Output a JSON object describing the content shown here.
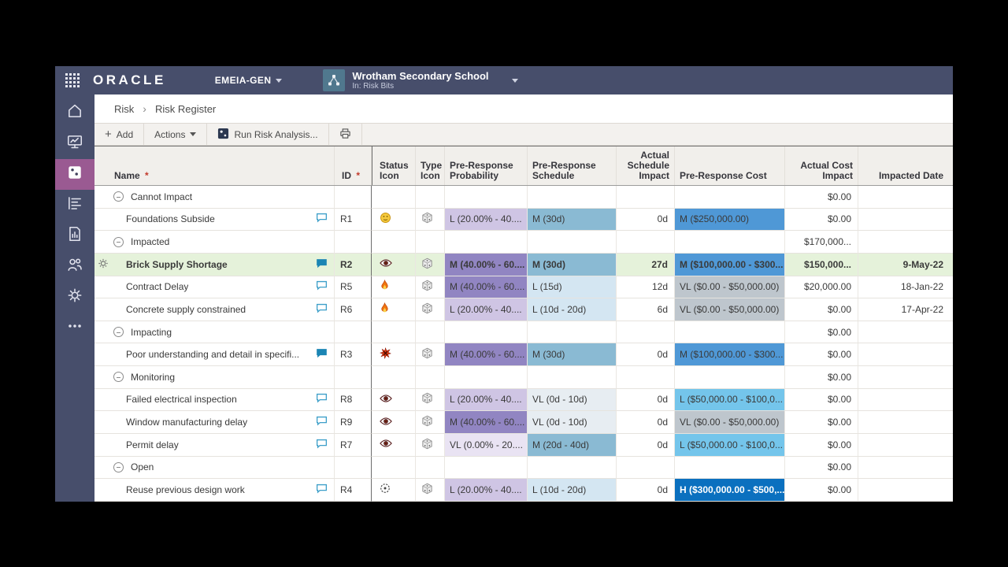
{
  "topbar": {
    "brand": "ORACLE",
    "workspace_label": "EMEIA-GEN",
    "project_name": "Wrotham Secondary School",
    "project_context": "In: Risk Bits",
    "icons": [
      "app-grid-icon",
      "project-network-icon",
      "chevron-down-icon"
    ]
  },
  "breadcrumb": {
    "section": "Risk",
    "page": "Risk Register"
  },
  "toolbar": {
    "add_label": "Add",
    "actions_label": "Actions",
    "run_label": "Run Risk Analysis...",
    "icons": [
      "plus-icon",
      "chevron-down-icon",
      "risk-analysis-die-icon",
      "print-icon"
    ]
  },
  "sidebar": {
    "selected_color": "#9a5a92",
    "bar_color": "#474e6b",
    "items": [
      {
        "icon": "home-icon",
        "selected": false
      },
      {
        "icon": "dashboard-monitor-icon",
        "selected": false
      },
      {
        "icon": "risk-die-icon",
        "selected": true
      },
      {
        "icon": "wbs-list-icon",
        "selected": false
      },
      {
        "icon": "report-document-icon",
        "selected": false
      },
      {
        "icon": "people-icon",
        "selected": false
      },
      {
        "icon": "gear-icon",
        "selected": false
      },
      {
        "icon": "more-ellipsis-icon",
        "selected": false
      }
    ]
  },
  "table": {
    "columns": [
      {
        "key": "name",
        "label": "Name",
        "required": true,
        "align": "left"
      },
      {
        "key": "id",
        "label": "ID",
        "required": true,
        "align": "right"
      },
      {
        "key": "status",
        "label": "Status Icon",
        "align": "left"
      },
      {
        "key": "type",
        "label": "Type Icon",
        "align": "left"
      },
      {
        "key": "prob",
        "label": "Pre-Response Probability",
        "align": "left"
      },
      {
        "key": "sched",
        "label": "Pre-Response Schedule",
        "align": "left"
      },
      {
        "key": "asi",
        "label": "Actual Schedule Impact",
        "align": "right"
      },
      {
        "key": "cost",
        "label": "Pre-Response Cost",
        "align": "left"
      },
      {
        "key": "aci",
        "label": "Actual Cost Impact",
        "align": "right"
      },
      {
        "key": "date",
        "label": "Impacted Date",
        "align": "right"
      }
    ],
    "colors": {
      "prob": {
        "VL": "#e9e3f3",
        "L": "#cfc5e4",
        "M": "#9185c2"
      },
      "sched": {
        "VL": "#e7edf2",
        "L": "#d4e6f2",
        "M": "#8abad3"
      },
      "cost": {
        "VL": "#bec6cd",
        "L": "#74c5eb",
        "M": "#4f98d6",
        "H": "#0b70bf"
      },
      "cost_h_text": "#ffffff",
      "selected_row": "#e5f2da"
    },
    "rows": [
      {
        "type": "group",
        "name": "Cannot Impact",
        "aci": "$0.00"
      },
      {
        "type": "item",
        "name": "Foundations Subside",
        "comment": "outline",
        "id": "R1",
        "status": "face-icon",
        "prob": {
          "level": "L",
          "label": "L (20.00% - 40...."
        },
        "sched": {
          "level": "M",
          "label": "M (30d)"
        },
        "asi": "0d",
        "cost": {
          "level": "M",
          "label": "M ($250,000.00)"
        },
        "aci": "$0.00",
        "date": ""
      },
      {
        "type": "group",
        "name": "Impacted",
        "aci": "$170,000..."
      },
      {
        "type": "item",
        "name": "Brick Supply Shortage",
        "selected": true,
        "gear": true,
        "comment": "filled",
        "id": "R2",
        "status": "eye-icon",
        "prob": {
          "level": "M",
          "label": "M (40.00% - 60...."
        },
        "sched": {
          "level": "M",
          "label": "M (30d)"
        },
        "asi": "27d",
        "cost": {
          "level": "M",
          "label": "M ($100,000.00 - $300..."
        },
        "aci": "$150,000...",
        "date": "9-May-22"
      },
      {
        "type": "item",
        "name": "Contract Delay",
        "comment": "outline",
        "id": "R5",
        "status": "flame-icon",
        "prob": {
          "level": "M",
          "label": "M (40.00% - 60...."
        },
        "sched": {
          "level": "L",
          "label": "L (15d)"
        },
        "asi": "12d",
        "cost": {
          "level": "VL",
          "label": "VL ($0.00 - $50,000.00)"
        },
        "aci": "$20,000.00",
        "date": "18-Jan-22"
      },
      {
        "type": "item",
        "name": "Concrete supply constrained",
        "comment": "outline",
        "id": "R6",
        "status": "flame-icon",
        "prob": {
          "level": "L",
          "label": "L (20.00% - 40...."
        },
        "sched": {
          "level": "L",
          "label": "L (10d - 20d)"
        },
        "asi": "6d",
        "cost": {
          "level": "VL",
          "label": "VL ($0.00 - $50,000.00)"
        },
        "aci": "$0.00",
        "date": "17-Apr-22"
      },
      {
        "type": "group",
        "name": "Impacting",
        "aci": "$0.00"
      },
      {
        "type": "item",
        "name": "Poor understanding and detail in specifi...",
        "comment": "filled",
        "id": "R3",
        "status": "impact-burst-icon",
        "prob": {
          "level": "M",
          "label": "M (40.00% - 60...."
        },
        "sched": {
          "level": "M",
          "label": "M (30d)"
        },
        "asi": "0d",
        "cost": {
          "level": "M",
          "label": "M ($100,000.00 - $300..."
        },
        "aci": "$0.00",
        "date": ""
      },
      {
        "type": "group",
        "name": "Monitoring",
        "aci": "$0.00"
      },
      {
        "type": "item",
        "name": "Failed electrical inspection",
        "comment": "outline",
        "id": "R8",
        "status": "eye-icon",
        "prob": {
          "level": "L",
          "label": "L (20.00% - 40...."
        },
        "sched": {
          "level": "VL",
          "label": "VL (0d - 10d)"
        },
        "asi": "0d",
        "cost": {
          "level": "L",
          "label": "L ($50,000.00 - $100,0..."
        },
        "aci": "$0.00",
        "date": ""
      },
      {
        "type": "item",
        "name": "Window manufacturing delay",
        "comment": "outline",
        "id": "R9",
        "status": "eye-icon",
        "prob": {
          "level": "M",
          "label": "M (40.00% - 60...."
        },
        "sched": {
          "level": "VL",
          "label": "VL (0d - 10d)"
        },
        "asi": "0d",
        "cost": {
          "level": "VL",
          "label": "VL ($0.00 - $50,000.00)"
        },
        "aci": "$0.00",
        "date": ""
      },
      {
        "type": "item",
        "name": "Permit delay",
        "comment": "outline",
        "id": "R7",
        "status": "eye-icon",
        "prob": {
          "level": "VL",
          "label": "VL (0.00% - 20...."
        },
        "sched": {
          "level": "M",
          "label": "M (20d - 40d)"
        },
        "asi": "0d",
        "cost": {
          "level": "L",
          "label": "L ($50,000.00 - $100,0..."
        },
        "aci": "$0.00",
        "date": ""
      },
      {
        "type": "group",
        "name": "Open",
        "aci": "$0.00"
      },
      {
        "type": "item",
        "name": "Reuse previous design work",
        "comment": "outline",
        "id": "R4",
        "status": "open-status-icon",
        "prob": {
          "level": "L",
          "label": "L (20.00% - 40...."
        },
        "sched": {
          "level": "L",
          "label": "L (10d - 20d)"
        },
        "asi": "0d",
        "cost": {
          "level": "H",
          "label": "H ($300,000.00 - $500,..."
        },
        "aci": "$0.00",
        "date": ""
      }
    ]
  }
}
